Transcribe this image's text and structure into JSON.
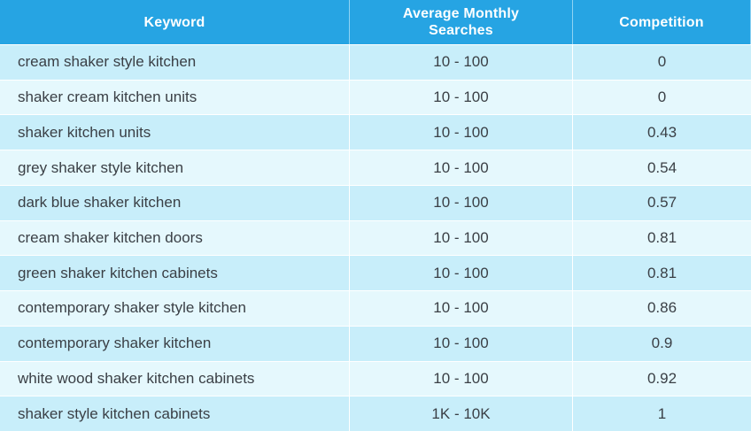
{
  "table": {
    "headers": {
      "keyword": "Keyword",
      "searches": "Average Monthly Searches",
      "competition": "Competition"
    },
    "rows": [
      {
        "keyword": "cream shaker style kitchen",
        "searches": "10 - 100",
        "competition": "0"
      },
      {
        "keyword": "shaker cream kitchen units",
        "searches": "10 - 100",
        "competition": "0"
      },
      {
        "keyword": "shaker kitchen units",
        "searches": "10 - 100",
        "competition": "0.43"
      },
      {
        "keyword": "grey shaker style kitchen",
        "searches": "10 - 100",
        "competition": "0.54"
      },
      {
        "keyword": "dark blue shaker kitchen",
        "searches": "10 - 100",
        "competition": "0.57"
      },
      {
        "keyword": "cream shaker kitchen doors",
        "searches": "10 - 100",
        "competition": "0.81"
      },
      {
        "keyword": "green shaker kitchen cabinets",
        "searches": "10 - 100",
        "competition": "0.81"
      },
      {
        "keyword": "contemporary shaker style kitchen",
        "searches": "10 - 100",
        "competition": "0.86"
      },
      {
        "keyword": "contemporary shaker kitchen",
        "searches": "10 - 100",
        "competition": "0.9"
      },
      {
        "keyword": "white wood shaker kitchen cabinets",
        "searches": "10 - 100",
        "competition": "0.92"
      },
      {
        "keyword": "shaker style kitchen cabinets",
        "searches": "1K - 10K",
        "competition": "1"
      }
    ]
  },
  "colors": {
    "header_bg": "#26a4e3",
    "row_odd": "#c8eefa",
    "row_even": "#e5f8fd",
    "text": "#3a3f45"
  }
}
